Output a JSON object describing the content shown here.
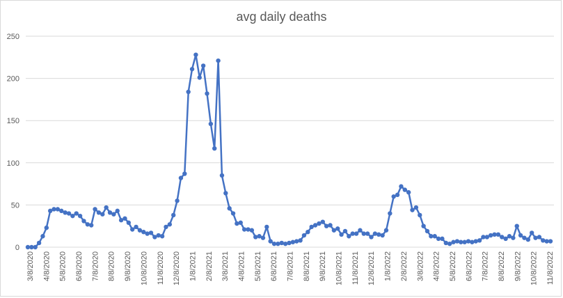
{
  "chart_data": {
    "type": "line",
    "title": "avg daily deaths",
    "xlabel": "",
    "ylabel": "",
    "ylim": [
      0,
      250
    ],
    "yticks": [
      0,
      50,
      100,
      150,
      200,
      250
    ],
    "grid": true,
    "legend": "none",
    "colors": {
      "line": "#4472c4",
      "grid": "#d9d9d9",
      "text": "#595959"
    },
    "x_tick_labels": [
      "3/8/2020",
      "4/8/2020",
      "5/8/2020",
      "6/8/2020",
      "7/8/2020",
      "8/8/2020",
      "9/8/2020",
      "10/8/2020",
      "11/8/2020",
      "12/8/2020",
      "1/8/2021",
      "2/8/2021",
      "3/8/2021",
      "4/8/2021",
      "5/8/2021",
      "6/8/2021",
      "7/8/2021",
      "8/8/2021",
      "9/8/2021",
      "10/8/2021",
      "11/8/2021",
      "12/8/2021",
      "1/8/2022",
      "2/8/2022",
      "3/8/2022",
      "4/8/2022",
      "5/8/2022",
      "6/8/2022",
      "7/8/2022",
      "8/8/2022",
      "9/8/2022",
      "10/8/2022",
      "11/8/2022"
    ],
    "values": [
      0,
      0,
      0,
      5,
      13,
      23,
      43,
      45,
      45,
      43,
      41,
      40,
      37,
      40,
      37,
      31,
      27,
      26,
      45,
      41,
      39,
      47,
      41,
      39,
      43,
      32,
      34,
      29,
      21,
      24,
      20,
      18,
      16,
      17,
      12,
      14,
      13,
      24,
      27,
      38,
      55,
      82,
      87,
      184,
      211,
      228,
      201,
      215,
      182,
      146,
      117,
      221,
      85,
      64,
      46,
      40,
      28,
      29,
      21,
      21,
      20,
      12,
      13,
      11,
      24,
      7,
      4,
      4,
      5,
      4,
      5,
      6,
      7,
      8,
      14,
      18,
      24,
      26,
      28,
      30,
      25,
      26,
      20,
      22,
      15,
      19,
      13,
      16,
      16,
      20,
      16,
      16,
      12,
      16,
      15,
      14,
      20,
      40,
      60,
      62,
      72,
      68,
      65,
      44,
      47,
      38,
      25,
      19,
      13,
      13,
      10,
      10,
      5,
      4,
      6,
      7,
      6,
      6,
      7,
      6,
      7,
      8,
      12,
      12,
      14,
      15,
      15,
      12,
      10,
      13,
      11,
      25,
      14,
      11,
      9,
      17,
      11,
      12,
      8,
      7,
      7
    ]
  }
}
